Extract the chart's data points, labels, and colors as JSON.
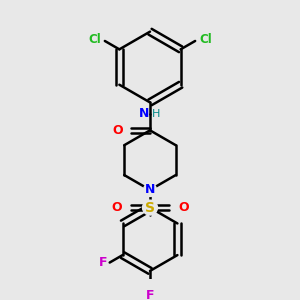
{
  "background_color": "#e8e8e8",
  "bond_color": "#000000",
  "bond_width": 1.8,
  "figsize": [
    3.0,
    3.0
  ],
  "dpi": 100,
  "colors": {
    "Cl": "#22bb22",
    "N": "#0000ff",
    "H": "#008888",
    "O": "#ff0000",
    "S": "#ccaa00",
    "F": "#cc00cc",
    "C": "#000000"
  },
  "scale": 1.0
}
